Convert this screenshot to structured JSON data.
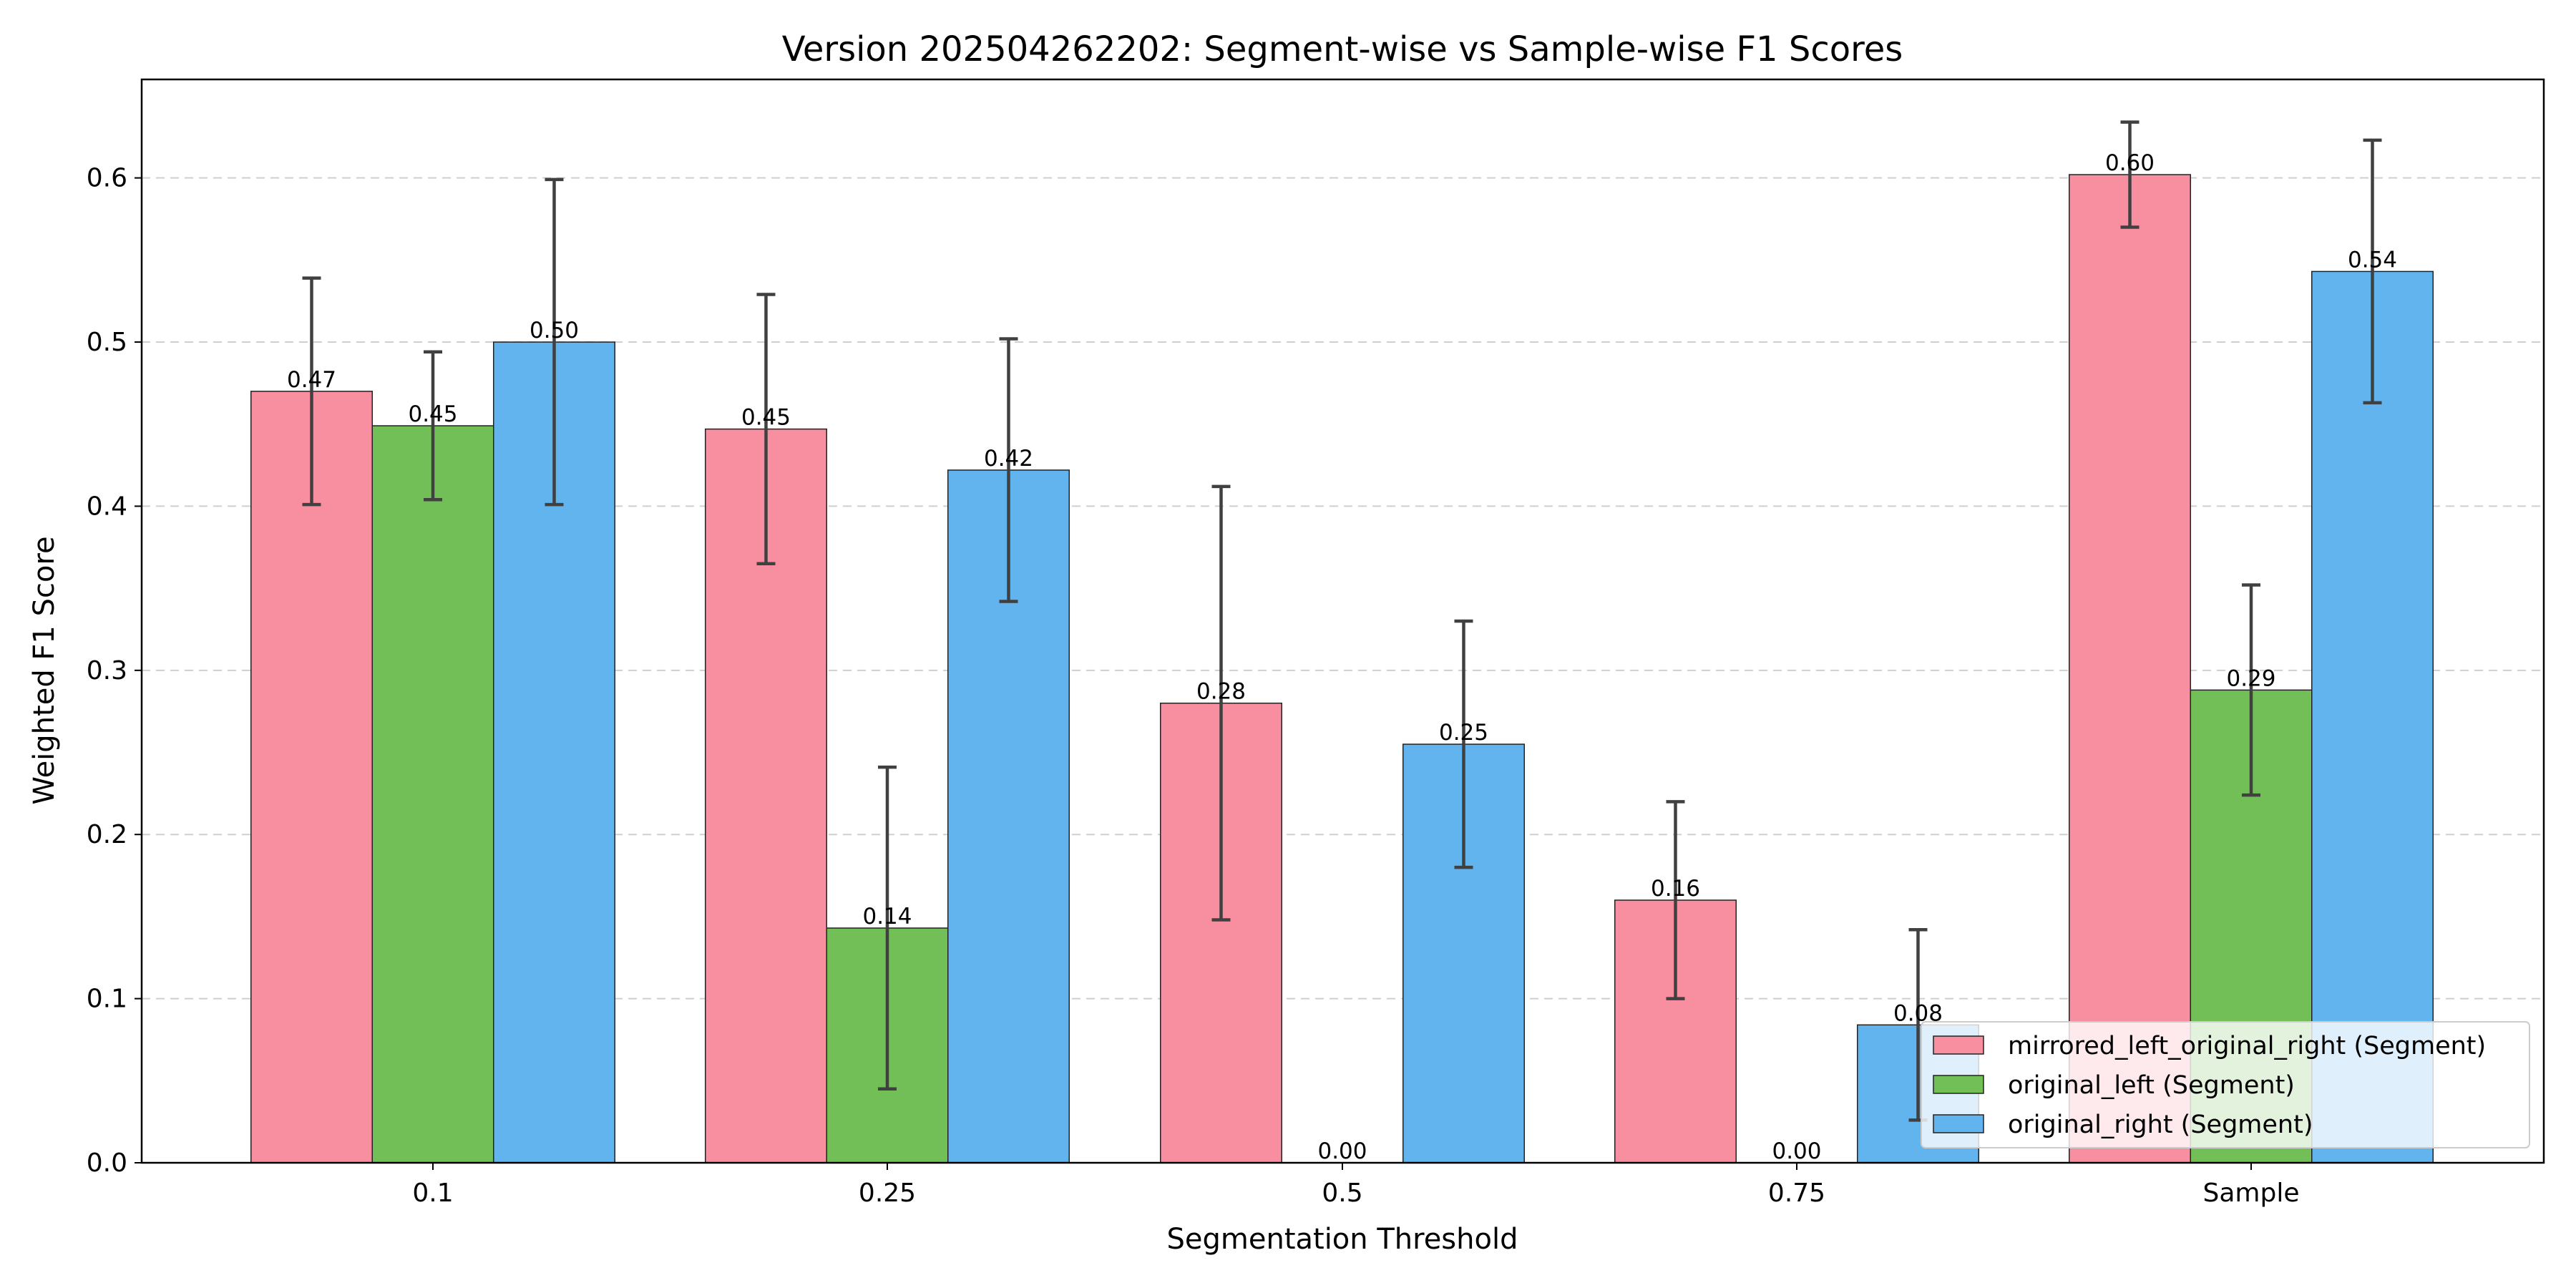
{
  "chart_data": {
    "type": "bar",
    "title": "Version 202504262202: Segment-wise vs Sample-wise F1 Scores",
    "xlabel": "Segmentation Threshold",
    "ylabel": "Weighted F1 Score",
    "categories": [
      "0.1",
      "0.25",
      "0.5",
      "0.75",
      "Sample"
    ],
    "ylim": [
      0,
      0.66
    ],
    "yticks": [
      0.0,
      0.1,
      0.2,
      0.3,
      0.4,
      0.5,
      0.6
    ],
    "ytick_labels": [
      "0.0",
      "0.1",
      "0.2",
      "0.3",
      "0.4",
      "0.5",
      "0.6"
    ],
    "grid": "horizontal dashed",
    "legend_position": "lower-right",
    "series": [
      {
        "name": "mirrored_left_original_right (Segment)",
        "color": "#f78fa0",
        "values": [
          0.47,
          0.447,
          0.28,
          0.16,
          0.602
        ],
        "errors": [
          0.069,
          0.082,
          0.132,
          0.06,
          0.032
        ],
        "labels": [
          "0.47",
          "0.45",
          "0.28",
          "0.16",
          "0.60"
        ]
      },
      {
        "name": "original_left (Segment)",
        "color": "#72bf57",
        "values": [
          0.449,
          0.143,
          0.0,
          0.0,
          0.288
        ],
        "errors": [
          0.045,
          0.098,
          0.0,
          0.0,
          0.064
        ],
        "labels": [
          "0.45",
          "0.14",
          "0.00",
          "0.00",
          "0.29"
        ]
      },
      {
        "name": "original_right (Segment)",
        "color": "#62b4ef",
        "values": [
          0.5,
          0.422,
          0.255,
          0.084,
          0.543
        ],
        "errors": [
          0.099,
          0.08,
          0.075,
          0.058,
          0.08
        ],
        "labels": [
          "0.50",
          "0.42",
          "0.25",
          "0.08",
          "0.54"
        ]
      }
    ]
  }
}
